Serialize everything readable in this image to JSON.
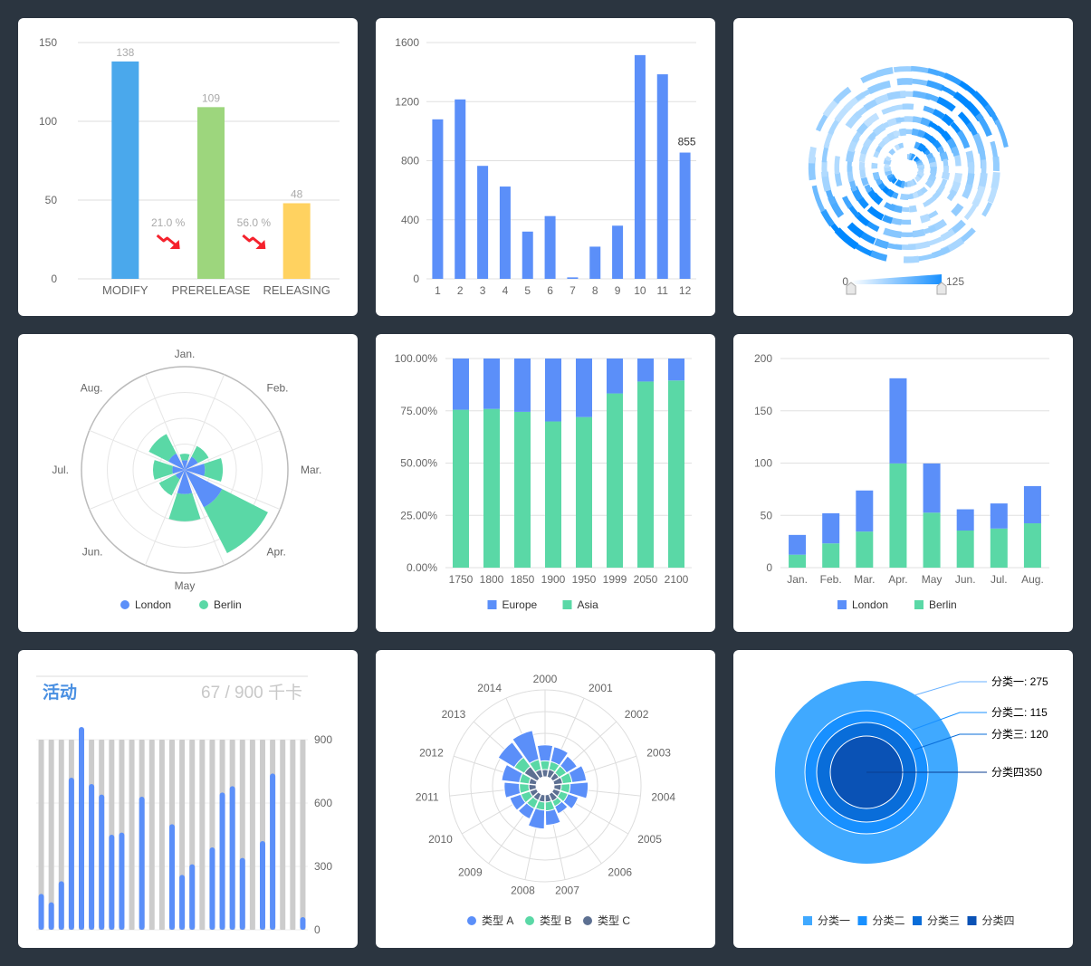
{
  "colors": {
    "page_bg": "#2b3540",
    "card_bg": "#ffffff",
    "blue": "#5b8ff9",
    "green": "#5ad8a6",
    "slate": "#5d7092",
    "grid": "#e0e0e0",
    "axis_text": "#666666",
    "label_gray": "#aaaaaa",
    "arrow_red": "#f5222d"
  },
  "chart_data": [
    {
      "id": "funnel-bars",
      "type": "bar",
      "categories": [
        "MODIFY",
        "PRERELEASE",
        "RELEASING"
      ],
      "values": [
        138,
        109,
        48
      ],
      "bar_colors": [
        "#4aa8ec",
        "#9dd67d",
        "#ffd260"
      ],
      "yticks": [
        "0",
        "50",
        "100",
        "150"
      ],
      "ylim": [
        0,
        150
      ],
      "conversion_labels": [
        "21.0 %",
        "56.0 %"
      ],
      "conversion_icon": "trend-down-arrow-icon"
    },
    {
      "id": "monthly-bars",
      "type": "bar",
      "categories": [
        "1",
        "2",
        "3",
        "4",
        "5",
        "6",
        "7",
        "8",
        "9",
        "10",
        "11",
        "12"
      ],
      "values": [
        1080,
        1215,
        765,
        625,
        320,
        425,
        10,
        218,
        360,
        1515,
        1385,
        855
      ],
      "yticks": [
        "0",
        "400",
        "800",
        "1200",
        "1600"
      ],
      "ylim": [
        0,
        1600
      ],
      "highlight_label": "855"
    },
    {
      "id": "spiral-heat",
      "type": "heatmap",
      "visual_map": {
        "min_label": "0",
        "max_label": "125",
        "min": 0,
        "max": 125
      }
    },
    {
      "id": "polar-stack",
      "type": "bar",
      "categories": [
        "Jan.",
        "Feb.",
        "Mar.",
        "Apr.",
        "May",
        "Jun.",
        "Jul.",
        "Aug."
      ],
      "series": [
        {
          "name": "London",
          "values": [
            18.9,
            28.8,
            39.3,
            81.4,
            47,
            20.3,
            24,
            35.6
          ]
        },
        {
          "name": "Berlin",
          "values": [
            12.4,
            23.2,
            34.5,
            99.7,
            52.6,
            35.5,
            37.4,
            42.4
          ]
        }
      ],
      "radial_max": 200
    },
    {
      "id": "percent-stack",
      "type": "bar",
      "categories": [
        "1750",
        "1800",
        "1850",
        "1900",
        "1950",
        "1999",
        "2050",
        "2100"
      ],
      "series": [
        {
          "name": "Europe",
          "values": [
            24.5,
            24.1,
            25.5,
            30.1,
            28.0,
            16.7,
            11.0,
            10.5
          ]
        },
        {
          "name": "Asia",
          "values": [
            75.5,
            75.9,
            74.5,
            69.9,
            72.0,
            83.3,
            89.0,
            89.5
          ]
        }
      ],
      "yticks": [
        "0.00%",
        "25.00%",
        "50.00%",
        "75.00%",
        "100.00%"
      ],
      "ylim": [
        0,
        100
      ]
    },
    {
      "id": "stacked-bars",
      "type": "bar",
      "categories": [
        "Jan.",
        "Feb.",
        "Mar.",
        "Apr.",
        "May",
        "Jun.",
        "Jul.",
        "Aug."
      ],
      "series": [
        {
          "name": "London",
          "values": [
            18.9,
            28.8,
            39.3,
            81.4,
            47,
            20.3,
            24,
            35.6
          ]
        },
        {
          "name": "Berlin",
          "values": [
            12.4,
            23.2,
            34.5,
            99.7,
            52.6,
            35.5,
            37.4,
            42.4
          ]
        }
      ],
      "yticks": [
        "0",
        "50",
        "100",
        "150",
        "200"
      ],
      "ylim": [
        0,
        200
      ]
    },
    {
      "id": "activity-bars",
      "type": "bar",
      "title": "活动",
      "counter": "67 / 900 千卡",
      "values": [
        170,
        130,
        230,
        720,
        960,
        690,
        640,
        450,
        460,
        0,
        630,
        0,
        0,
        500,
        260,
        310,
        0,
        390,
        650,
        680,
        340,
        0,
        420,
        740,
        0,
        0,
        60
      ],
      "background_value": 900,
      "yticks": [
        "0",
        "300",
        "600",
        "900"
      ],
      "ylim": [
        0,
        900
      ]
    },
    {
      "id": "polar-years",
      "type": "bar",
      "categories": [
        "2000",
        "2001",
        "2002",
        "2003",
        "2004",
        "2005",
        "2006",
        "2007",
        "2008",
        "2009",
        "2010",
        "2011",
        "2012",
        "2013",
        "2014"
      ],
      "series": [
        {
          "name": "类型 A",
          "values": [
            2.2,
            2.1,
            1.7,
            2.0,
            2.5,
            1.5,
            1.1,
            2.0,
            2.6,
            1.6,
            1.6,
            2.1,
            2.5,
            2.6,
            4.1
          ]
        },
        {
          "name": "类型 B",
          "values": [
            1.2,
            1.1,
            1.2,
            1.3,
            1.2,
            1.1,
            0.8,
            1.2,
            1.1,
            1.2,
            1.3,
            1.3,
            1.3,
            1.6,
            1.4
          ]
        },
        {
          "name": "类型 C",
          "values": [
            1.0,
            1.1,
            1.0,
            1.2,
            1.0,
            1.0,
            1.1,
            1.0,
            1.0,
            1.0,
            1.0,
            1.0,
            1.0,
            2.1,
            1.1
          ]
        }
      ],
      "inner_radius_value": 2,
      "radial_max": 12
    },
    {
      "id": "nested-pie",
      "type": "pie",
      "slices": [
        {
          "name": "分类一",
          "label": "分类一: 275",
          "value": 275,
          "color": "#40a9ff"
        },
        {
          "name": "分类二",
          "label": "分类二: 115",
          "value": 115,
          "color": "#1890ff"
        },
        {
          "name": "分类三",
          "label": "分类三: 120",
          "value": 120,
          "color": "#096dd9"
        },
        {
          "name": "分类四",
          "label": "分类四350",
          "value": 350,
          "color": "#0a52b5"
        }
      ]
    }
  ]
}
